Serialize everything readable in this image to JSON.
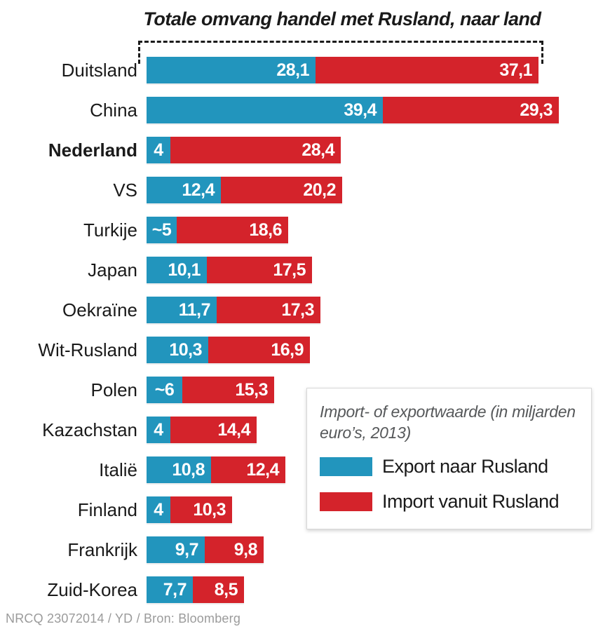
{
  "title": "Totale omvang handel met Rusland, naar land",
  "footer": "NRCQ 23072014 / YD / Bron: Bloomberg",
  "legend": {
    "note": "Import- of exportwaarde (in miljarden euro’s, 2013)",
    "items": [
      {
        "label": "Export naar Rusland",
        "color": "#2295bd"
      },
      {
        "label": "Import vanuit Rusland",
        "color": "#d4232b"
      }
    ]
  },
  "chart_data": {
    "type": "bar",
    "orientation": "horizontal",
    "stacked": true,
    "title": "Totale omvang handel met Rusland, naar land",
    "unit_note": "Import- of exportwaarde (in miljarden euro’s, 2013)",
    "legend_position": "right-middle",
    "series": [
      {
        "name": "Export naar Rusland",
        "color": "#2295bd"
      },
      {
        "name": "Import vanuit Rusland",
        "color": "#d4232b"
      }
    ],
    "rows": [
      {
        "country": "Duitsland",
        "export": 28.1,
        "import": 37.1,
        "export_label": "28,1",
        "import_label": "37,1",
        "emphasis": false,
        "bracketed_total": true
      },
      {
        "country": "China",
        "export": 39.4,
        "import": 29.3,
        "export_label": "39,4",
        "import_label": "29,3",
        "emphasis": false
      },
      {
        "country": "Nederland",
        "export": 4,
        "import": 28.4,
        "export_label": "4",
        "import_label": "28,4",
        "emphasis": true
      },
      {
        "country": "VS",
        "export": 12.4,
        "import": 20.2,
        "export_label": "12,4",
        "import_label": "20,2",
        "emphasis": false
      },
      {
        "country": "Turkije",
        "export": 5,
        "import": 18.6,
        "export_label": "~5",
        "import_label": "18,6",
        "emphasis": false
      },
      {
        "country": "Japan",
        "export": 10.1,
        "import": 17.5,
        "export_label": "10,1",
        "import_label": "17,5",
        "emphasis": false
      },
      {
        "country": "Oekraïne",
        "export": 11.7,
        "import": 17.3,
        "export_label": "11,7",
        "import_label": "17,3",
        "emphasis": false
      },
      {
        "country": "Wit-Rusland",
        "export": 10.3,
        "import": 16.9,
        "export_label": "10,3",
        "import_label": "16,9",
        "emphasis": false
      },
      {
        "country": "Polen",
        "export": 6,
        "import": 15.3,
        "export_label": "~6",
        "import_label": "15,3",
        "emphasis": false
      },
      {
        "country": "Kazachstan",
        "export": 4,
        "import": 14.4,
        "export_label": "4",
        "import_label": "14,4",
        "emphasis": false
      },
      {
        "country": "Italië",
        "export": 10.8,
        "import": 12.4,
        "export_label": "10,8",
        "import_label": "12,4",
        "emphasis": false
      },
      {
        "country": "Finland",
        "export": 4,
        "import": 10.3,
        "export_label": "4",
        "import_label": "10,3",
        "emphasis": false
      },
      {
        "country": "Frankrijk",
        "export": 9.7,
        "import": 9.8,
        "export_label": "9,7",
        "import_label": "9,8",
        "emphasis": false
      },
      {
        "country": "Zuid-Korea",
        "export": 7.7,
        "import": 8.5,
        "export_label": "7,7",
        "import_label": "8,5",
        "emphasis": false
      }
    ]
  }
}
